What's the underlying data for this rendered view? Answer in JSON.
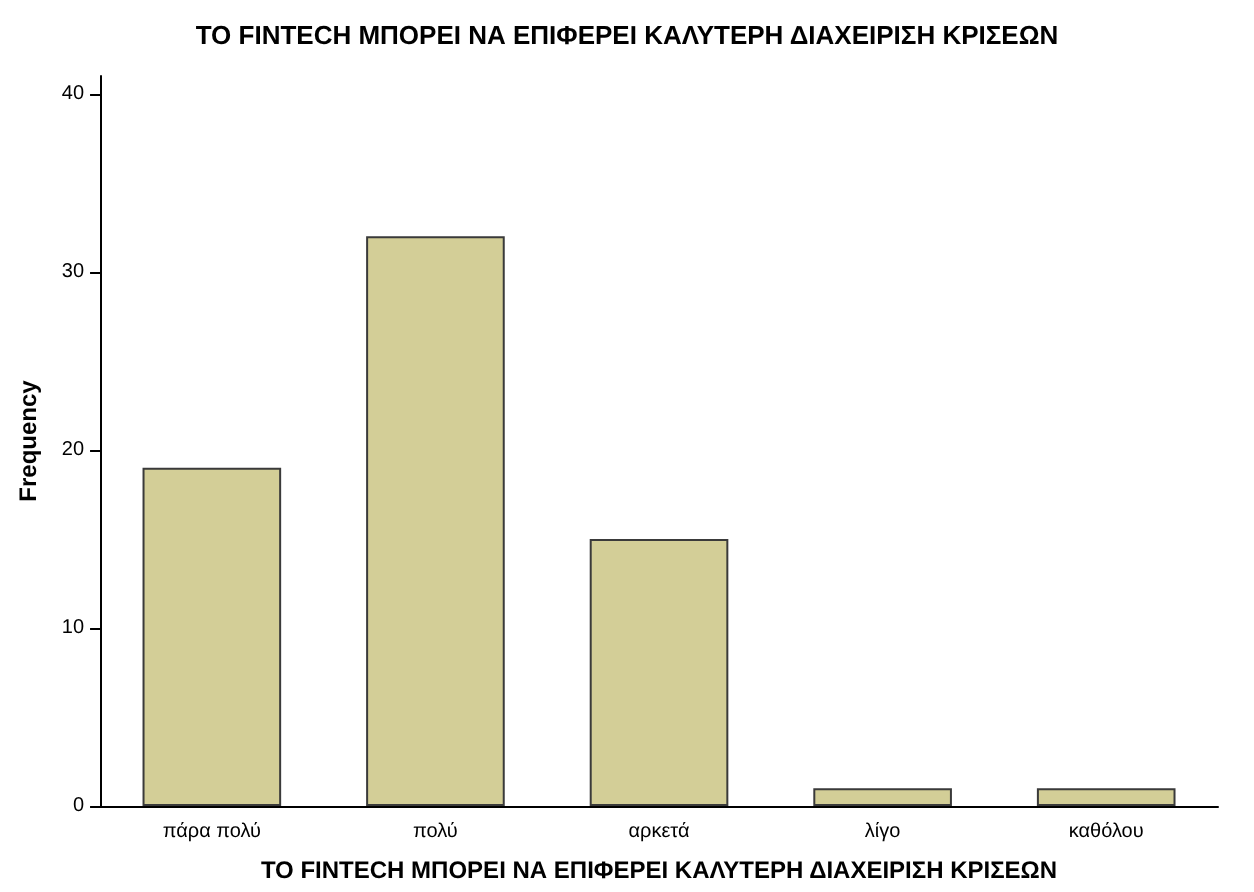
{
  "chart_data": {
    "type": "bar",
    "title": "ΤΟ FINTECH ΜΠΟΡΕΙ ΝΑ ΕΠΙΦΕΡΕΙ ΚΑΛΥΤΕΡΗ ΔΙΑΧΕΙΡΙΣΗ ΚΡΙΣΕΩΝ",
    "xlabel": "ΤΟ FINTECH ΜΠΟΡΕΙ ΝΑ ΕΠΙΦΕΡΕΙ ΚΑΛΥΤΕΡΗ ΔΙΑΧΕΙΡΙΣΗ ΚΡΙΣΕΩΝ",
    "ylabel": "Frequency",
    "categories": [
      "πάρα πολύ",
      "πολύ",
      "αρκετά",
      "λίγο",
      "καθόλου"
    ],
    "values": [
      19,
      32,
      15,
      1,
      1
    ],
    "color": "#d3ce97",
    "ylim": [
      0,
      41
    ],
    "yticks": [
      0,
      10,
      20,
      30,
      40
    ],
    "grid": false
  }
}
